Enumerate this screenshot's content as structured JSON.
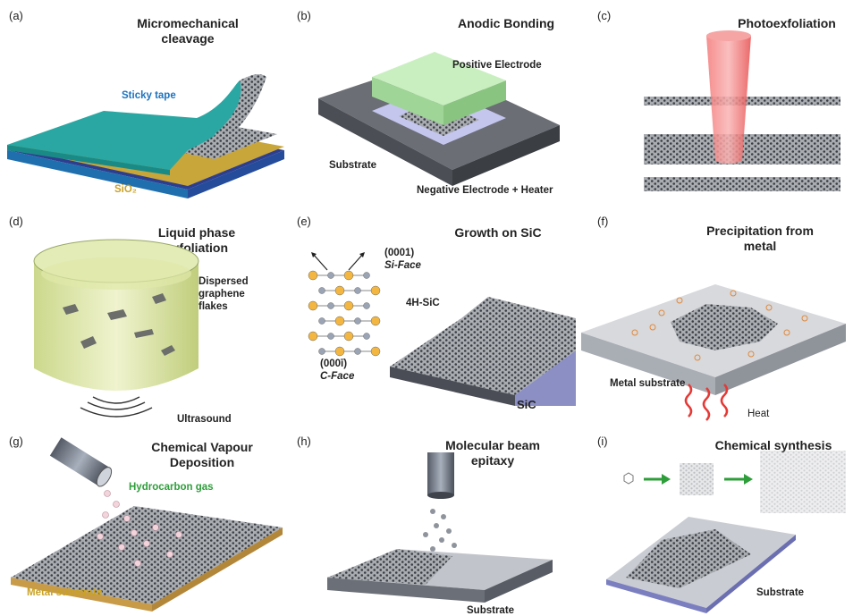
{
  "panels": [
    {
      "id": "a",
      "label": "(a)",
      "title": "Micromechanical cleavage",
      "annotations": {
        "tape": "Sticky tape",
        "sio2": "SiO₂"
      },
      "colors": {
        "tape": "#2aa7a2",
        "tape_label": "#1e73be",
        "sio2_label": "#c9a227"
      }
    },
    {
      "id": "b",
      "label": "(b)",
      "title": "Anodic Bonding",
      "annotations": {
        "positive": "Positive Electrode",
        "substrate": "Substrate",
        "negative": "Negative Electrode + Heater"
      },
      "colors": {
        "electrode": "#bfe8b6"
      }
    },
    {
      "id": "c",
      "label": "(c)",
      "title": "Photoexfoliation",
      "colors": {
        "beam": "#ee5a5a"
      }
    },
    {
      "id": "d",
      "label": "(d)",
      "title": "Liquid phase exfoliation",
      "annotations": {
        "flakes": "Dispersed graphene flakes",
        "ultrasound": "Ultrasound"
      },
      "colors": {
        "liquid": "#d7e39a"
      }
    },
    {
      "id": "e",
      "label": "(e)",
      "title": "Growth on SiC",
      "annotations": {
        "si_index": "(0001)",
        "si_face": "Si-Face",
        "polytype": "4H-SiC",
        "c_index": "(000ī)",
        "c_face": "C-Face",
        "sic": "SiC"
      },
      "colors": {
        "si_atom": "#f3b640",
        "c_atom": "#9aa4b4"
      }
    },
    {
      "id": "f",
      "label": "(f)",
      "title": "Precipitation from metal",
      "annotations": {
        "metal": "Metal substrate",
        "heat": "Heat"
      },
      "colors": {
        "heat": "#e53935"
      }
    },
    {
      "id": "g",
      "label": "(g)",
      "title": "Chemical Vapour Deposition",
      "annotations": {
        "gas": "Hydrocarbon gas",
        "metal": "Metal substrate"
      },
      "colors": {
        "gas_label": "#2e9e3a",
        "metal_label": "#c9a227"
      }
    },
    {
      "id": "h",
      "label": "(h)",
      "title": "Molecular beam epitaxy",
      "annotations": {
        "substrate": "Substrate"
      }
    },
    {
      "id": "i",
      "label": "(i)",
      "title": "Chemical synthesis",
      "annotations": {
        "substrate": "Substrate"
      },
      "colors": {
        "arrow": "#2e9e3a"
      }
    }
  ]
}
